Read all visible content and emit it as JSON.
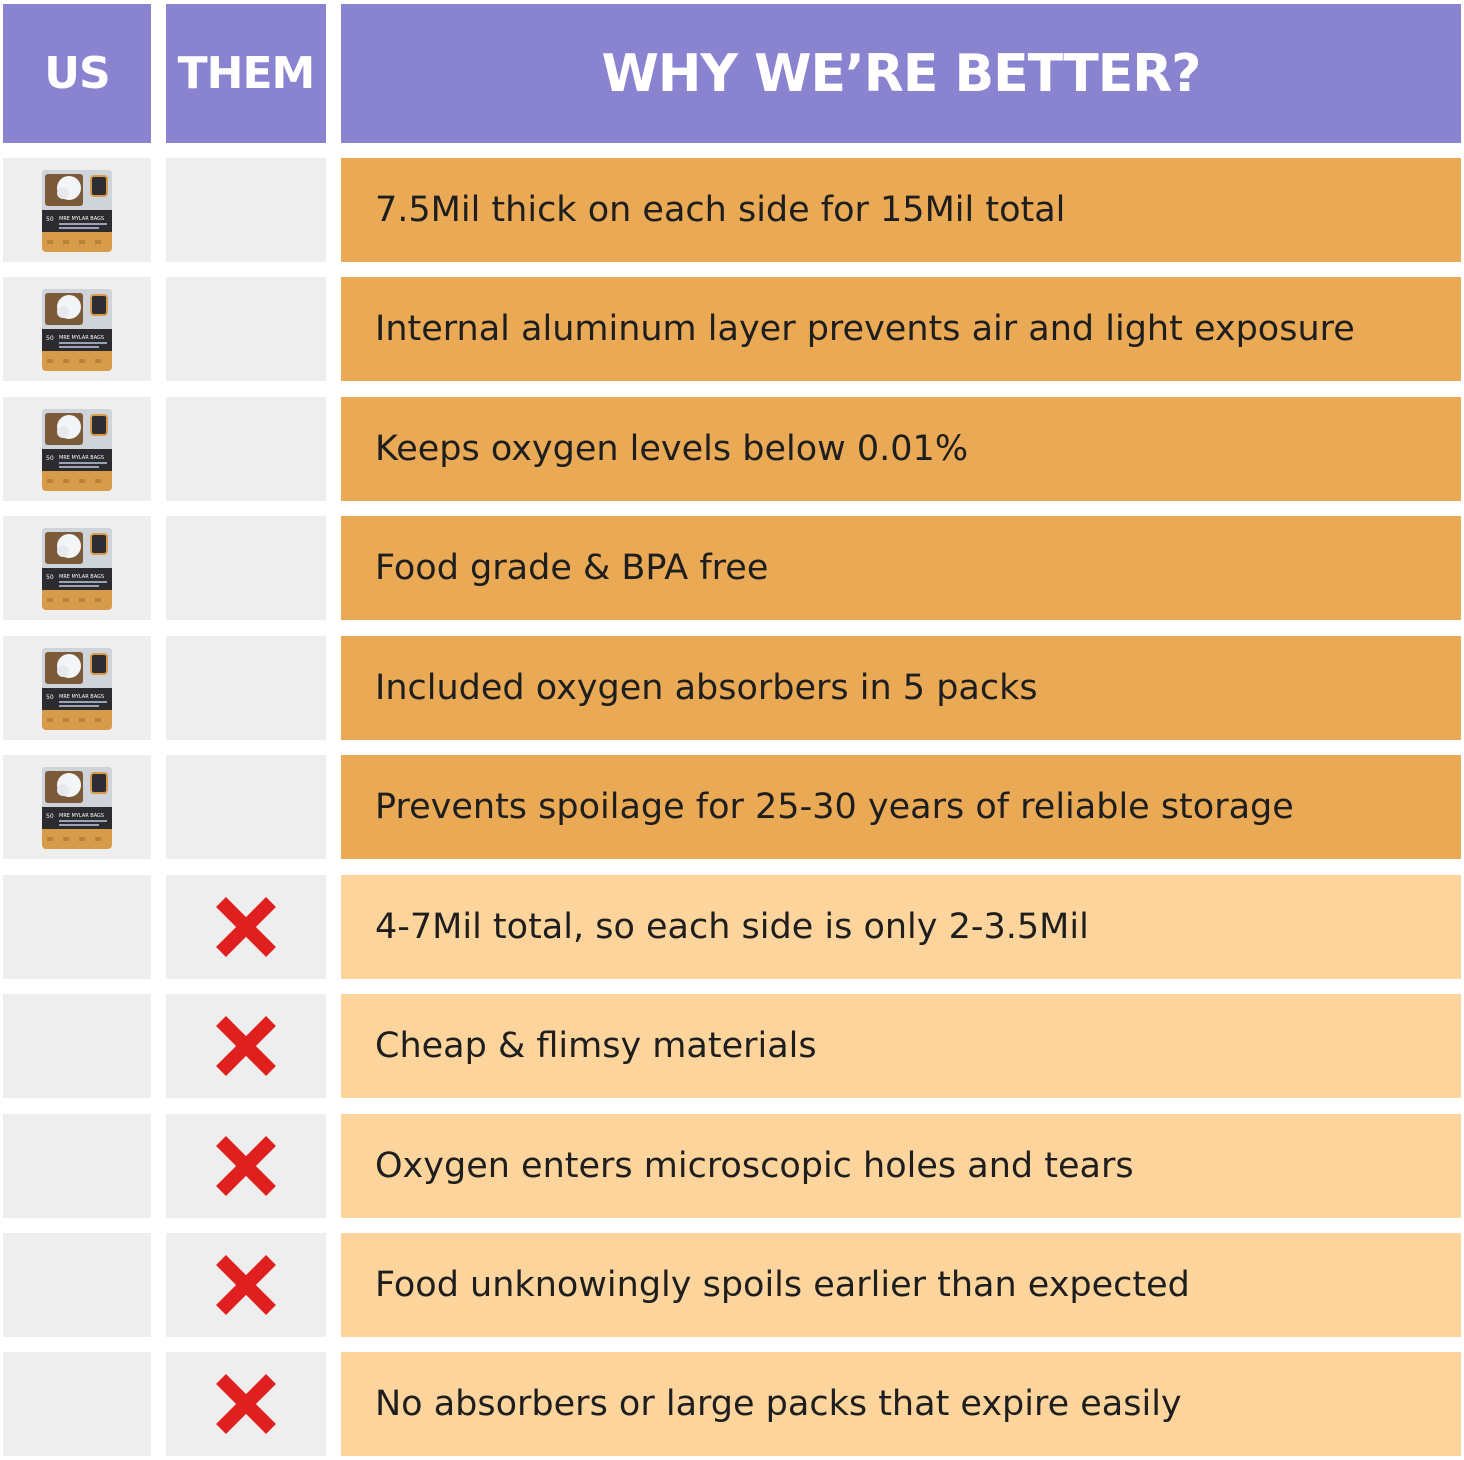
{
  "header": {
    "us_label": "US",
    "them_label": "THEM",
    "why_label": "WHY WE’RE BETTER?"
  },
  "colors": {
    "header_bg": "#8a83d0",
    "us_feature_bg": "#e9a955",
    "them_feature_bg": "#fcd49c",
    "cell_gray": "#eeeeee",
    "cross_red": "#e0201f"
  },
  "product_image": {
    "caption": "MRE MYLAR BAGS"
  },
  "us_features": [
    "7.5Mil thick on each side for 15Mil total",
    "Internal aluminum layer prevents air and light exposure",
    "Keeps oxygen levels below 0.01%",
    "Food grade & BPA free",
    "Included oxygen absorbers in 5 packs",
    "Prevents spoilage for 25-30 years of reliable storage"
  ],
  "them_features": [
    "4-7Mil total, so each side is only 2-3.5Mil",
    "Cheap & flimsy materials",
    "Oxygen enters microscopic holes and tears",
    "Food unknowingly spoils earlier than expected",
    "No absorbers or large packs that expire easily"
  ],
  "icons": {
    "us_row_icon": "product-bag-icon",
    "them_row_icon": "red-x-icon"
  }
}
